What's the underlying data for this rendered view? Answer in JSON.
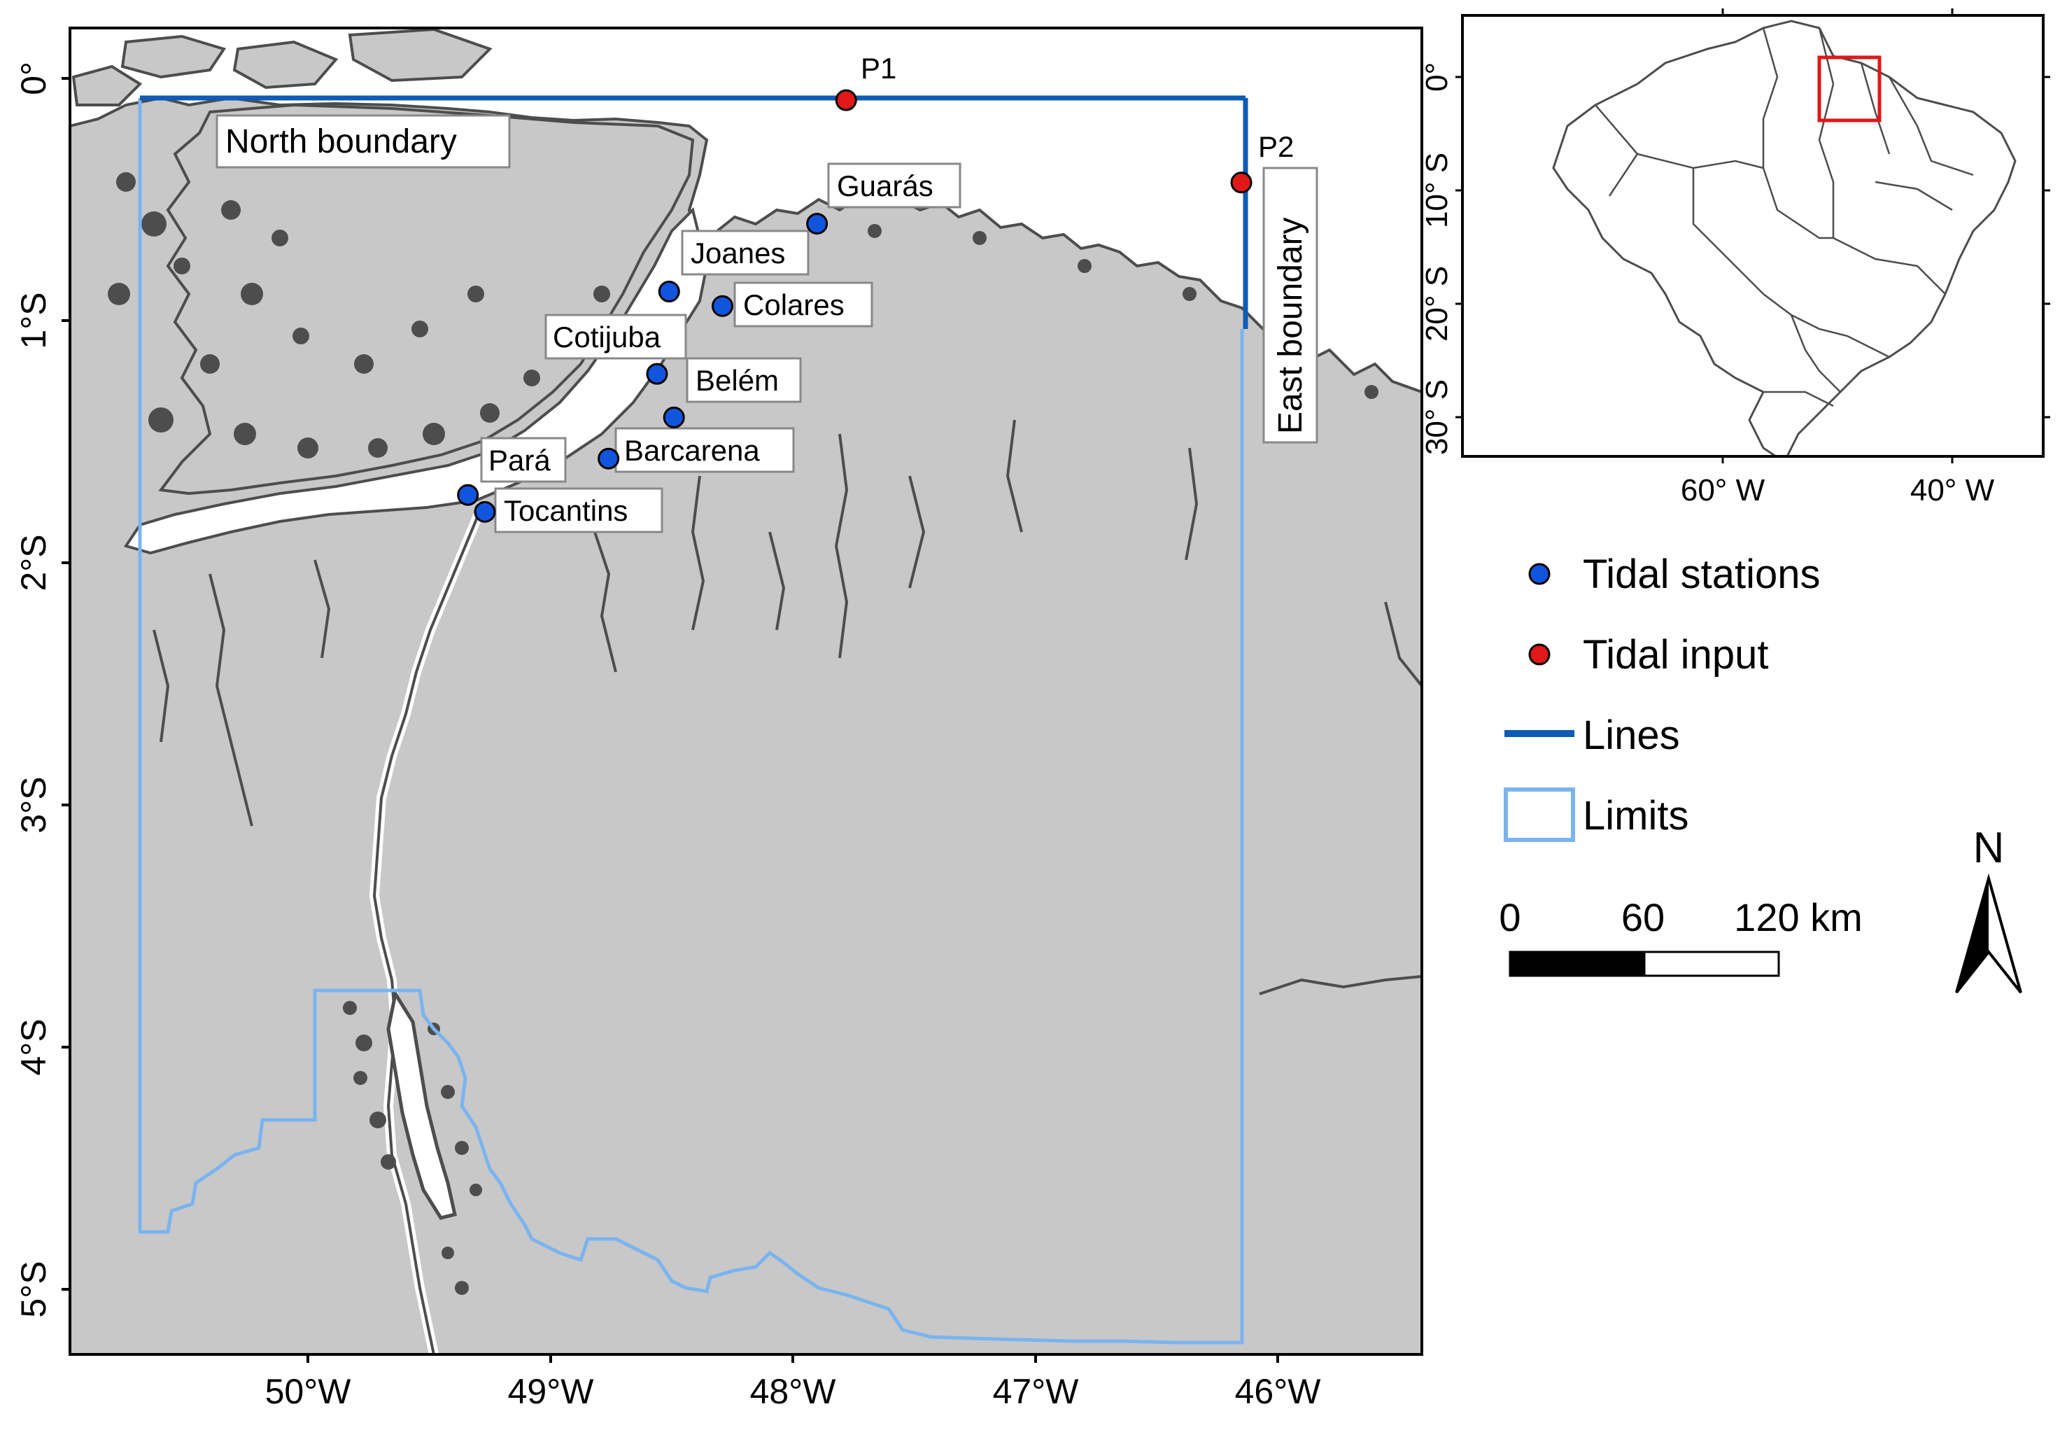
{
  "main_map": {
    "y_ticks": [
      "0°",
      "1°S",
      "2°S",
      "3°S",
      "4°S",
      "5°S"
    ],
    "x_ticks": [
      "50°W",
      "49°W",
      "48°W",
      "47°W",
      "46°W"
    ],
    "boundaries": {
      "north_label": "North boundary",
      "east_label": "East boundary"
    },
    "input_points": [
      {
        "label": "P1",
        "lon": -47.78,
        "lat": -0.09
      },
      {
        "label": "P2",
        "lon": -46.15,
        "lat": -0.43
      }
    ],
    "stations": [
      {
        "label": "Guarás",
        "lon": -47.9,
        "lat": -0.6
      },
      {
        "label": "Joanes",
        "lon": -48.51,
        "lat": -0.88
      },
      {
        "label": "Colares",
        "lon": -48.29,
        "lat": -0.94
      },
      {
        "label": "Cotijuba",
        "lon": -48.56,
        "lat": -1.22
      },
      {
        "label": "Belém",
        "lon": -48.49,
        "lat": -1.4
      },
      {
        "label": "Barcarena",
        "lon": -48.76,
        "lat": -1.57
      },
      {
        "label": "Pará",
        "lon": -49.34,
        "lat": -1.72
      },
      {
        "label": "Tocantins",
        "lon": -49.27,
        "lat": -1.79
      }
    ],
    "colors": {
      "land": "#c8c8c8",
      "coast": "#4d4d4d",
      "water": "#ffffff",
      "lines": "#0f5bb5",
      "limits": "#7ab4f0",
      "station": "#1155dd",
      "input": "#e01818"
    }
  },
  "inset_map": {
    "y_ticks": [
      "0°",
      "10° S",
      "20° S",
      "30° S"
    ],
    "x_ticks": [
      "60° W",
      "40° W"
    ],
    "highlight_color": "#e01818"
  },
  "legend": {
    "stations_label": "Tidal stations",
    "input_label": "Tidal input",
    "lines_label": "Lines",
    "limits_label": "Limits"
  },
  "scalebar": {
    "ticks": [
      "0",
      "60",
      "120 km"
    ]
  },
  "north_arrow": {
    "label": "N"
  }
}
